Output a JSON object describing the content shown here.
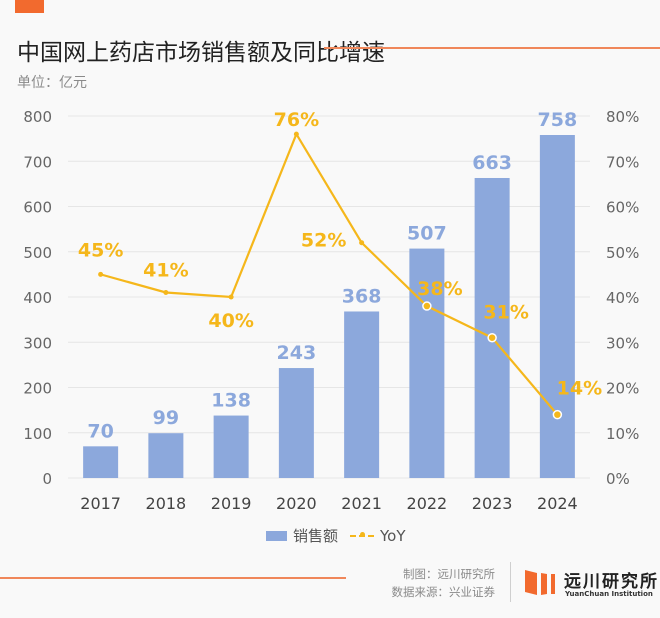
{
  "header": {
    "title": "中国网上药店市场销售额及同比增速",
    "unit": "单位：亿元"
  },
  "legend": {
    "bar_label": "销售额",
    "line_label": "YoY"
  },
  "footer": {
    "credit_chart": "制图：远川研究所",
    "credit_source": "数据来源：兴业证券",
    "logo_cn": "远川研究所",
    "logo_en": "YuanChuan Institution"
  },
  "colors": {
    "bar": "#8ca8dc",
    "bar_label": "#8ca8dc",
    "line": "#f5b71b",
    "accent": "#f26a2e",
    "grid": "#e6e6e6",
    "axis_text": "#666666"
  },
  "chart_data": {
    "type": "bar",
    "title": "中国网上药店市场销售额及同比增速",
    "xlabel": "",
    "ylabel": "单位：亿元",
    "categories": [
      "2017",
      "2018",
      "2019",
      "2020",
      "2021",
      "2022",
      "2023",
      "2024"
    ],
    "series": [
      {
        "name": "销售额",
        "type": "bar",
        "axis": "left",
        "values": [
          70,
          99,
          138,
          243,
          368,
          507,
          663,
          758
        ],
        "labels": [
          "70",
          "99",
          "138",
          "243",
          "368",
          "507",
          "663",
          "758"
        ]
      },
      {
        "name": "YoY",
        "type": "line",
        "axis": "right",
        "values": [
          45,
          41,
          40,
          76,
          52,
          38,
          31,
          14
        ],
        "labels": [
          "45%",
          "41%",
          "40%",
          "76%",
          "52%",
          "38%",
          "31%",
          "14%"
        ]
      }
    ],
    "ylim": [
      0,
      800
    ],
    "yticks": [
      "0",
      "100",
      "200",
      "300",
      "400",
      "500",
      "600",
      "700",
      "800"
    ],
    "y2lim": [
      0,
      80
    ],
    "y2ticks": [
      "0%",
      "10%",
      "20%",
      "30%",
      "40%",
      "50%",
      "60%",
      "70%",
      "80%"
    ],
    "grid": true,
    "legend_position": "bottom-center"
  }
}
